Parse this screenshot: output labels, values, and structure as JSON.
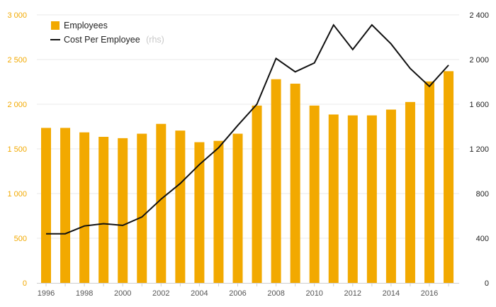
{
  "chart_data": {
    "type": "bar+line",
    "x": [
      1996,
      1997,
      1998,
      1999,
      2000,
      2001,
      2002,
      2003,
      2004,
      2005,
      2006,
      2007,
      2008,
      2009,
      2010,
      2011,
      2012,
      2013,
      2014,
      2015,
      2016,
      2017
    ],
    "x_tick_labels": [
      "1996",
      "1998",
      "2000",
      "2002",
      "2004",
      "2006",
      "2008",
      "2010",
      "2012",
      "2014",
      "2016"
    ],
    "series": [
      {
        "name": "Employees",
        "type": "bar",
        "axis": "left",
        "color": "#F2A900",
        "values": [
          1735,
          1735,
          1685,
          1635,
          1620,
          1670,
          1780,
          1705,
          1575,
          1590,
          1670,
          1985,
          2280,
          2230,
          1985,
          1885,
          1875,
          1875,
          1940,
          2025,
          2255,
          2370
        ]
      },
      {
        "name": "Cost Per Employee",
        "suffix": "(rhs)",
        "type": "line",
        "axis": "right",
        "color": "#111111",
        "values": [
          440,
          440,
          510,
          530,
          515,
          590,
          750,
          890,
          1060,
          1210,
          1410,
          1600,
          2010,
          1890,
          1970,
          2310,
          2090,
          2310,
          2140,
          1920,
          1760,
          1950
        ]
      }
    ],
    "y_left": {
      "min": 0,
      "max": 3000,
      "ticks": [
        0,
        500,
        1000,
        1500,
        2000,
        2500,
        3000
      ],
      "tick_labels": [
        "0",
        "500",
        "1 000",
        "1 500",
        "2 000",
        "2 500",
        "3 000"
      ],
      "color": "#F2A900"
    },
    "y_right": {
      "min": 0,
      "max": 2400,
      "ticks": [
        0,
        400,
        800,
        1200,
        1600,
        2000,
        2400
      ],
      "tick_labels": [
        "0",
        "400",
        "800",
        "1 200",
        "1 600",
        "2 000",
        "2 400"
      ],
      "color": "#222222"
    },
    "grid": true,
    "legend": {
      "placement": "top-left"
    }
  }
}
